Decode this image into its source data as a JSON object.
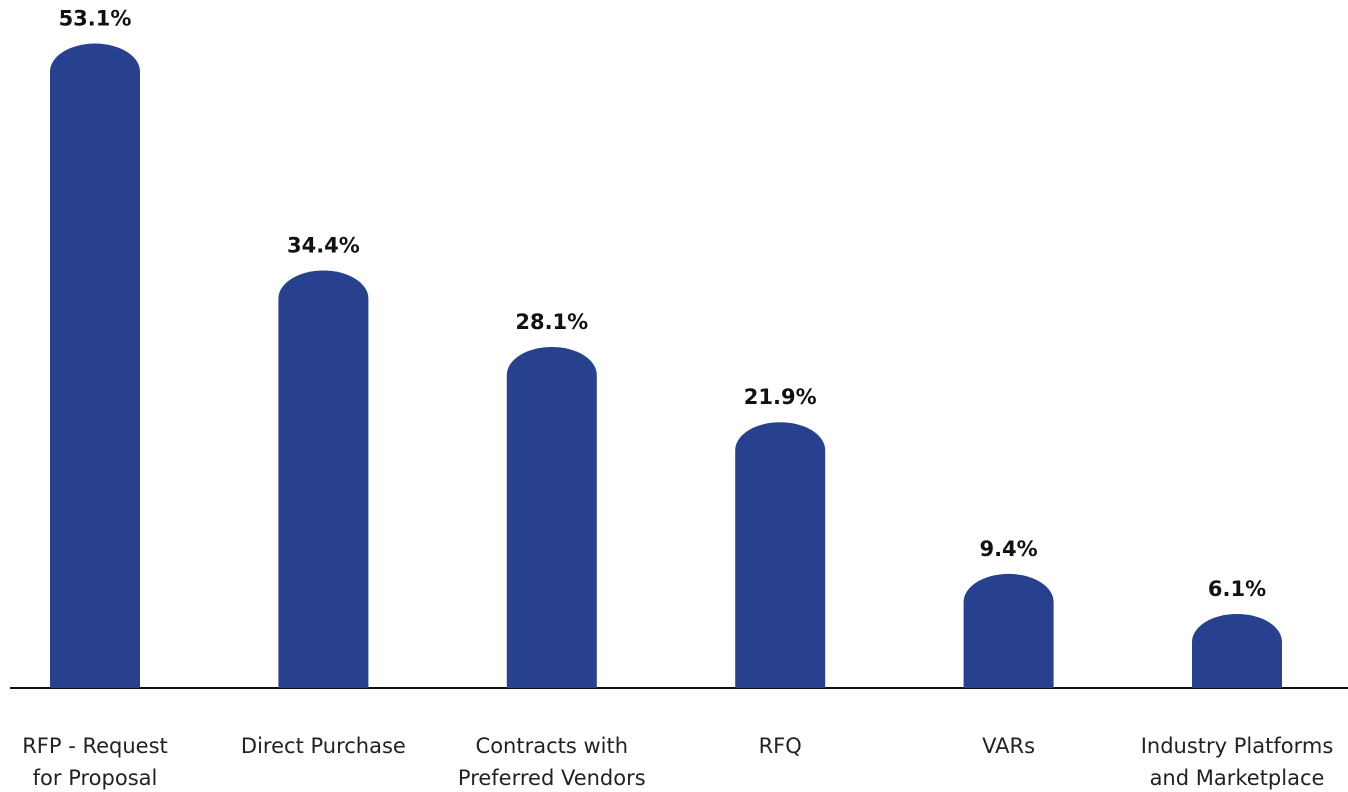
{
  "chart_data": {
    "type": "bar",
    "categories": [
      "RFP - Request\nfor Proposal",
      "Direct Purchase",
      "Contracts with\nPreferred Vendors",
      "RFQ",
      "VARs",
      "Industry Platforms\nand Marketplace"
    ],
    "values": [
      53.1,
      34.4,
      28.1,
      21.9,
      9.4,
      6.1
    ],
    "value_labels": [
      "53.1%",
      "34.4%",
      "28.1%",
      "21.9%",
      "9.4%",
      "6.1%"
    ],
    "color": "#27418f",
    "ylim": [
      0,
      55
    ]
  }
}
